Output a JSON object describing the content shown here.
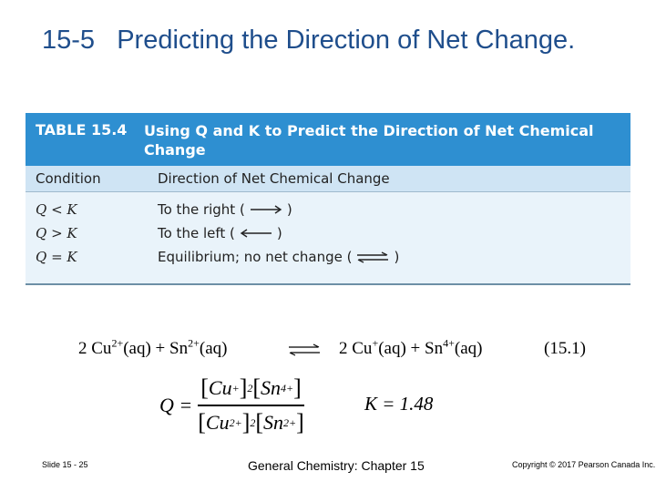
{
  "title": "15-5   Predicting the Direction of Net Change.",
  "table": {
    "label": "TABLE 15.4",
    "title": "Using Q and K to Predict the Direction of Net Chemical Change",
    "headers": [
      "Condition",
      "Direction of Net Chemical Change"
    ],
    "rows": [
      {
        "condition": "Q < K",
        "direction": "To the right (",
        "arrow": "right-arrow",
        "close": ")"
      },
      {
        "condition": "Q > K",
        "direction": "To the left (",
        "arrow": "left-arrow",
        "close": ")"
      },
      {
        "condition": "Q = K",
        "direction": "Equilibrium; no net change (",
        "arrow": "equilibrium-arrow",
        "close": ")"
      }
    ]
  },
  "equation": {
    "left_1": "2 Cu",
    "left_1_sup": "2+",
    "left_1_state": "(aq) + Sn",
    "left_2_sup": "2+",
    "left_2_state": "(aq)",
    "right_1": "2 Cu",
    "right_1_sup": "+",
    "right_1_state": "(aq) + Sn",
    "right_2_sup": "4+",
    "right_2_state": "(aq)",
    "number": "(15.1)"
  },
  "q_expression": {
    "lhs": "Q =",
    "num_1": "Cu",
    "num_1_sup": "+",
    "num_exp_1": "2",
    "num_2": "Sn",
    "num_2_sup": "4+",
    "den_1": "Cu",
    "den_1_sup": "2+",
    "den_exp_1": "2",
    "den_2": "Sn",
    "den_2_sup": "2+"
  },
  "k_value": "K = 1.48",
  "footer": {
    "slide": "Slide 15 - 25",
    "course": "General Chemistry: Chapter 15",
    "copyright": "Copyright © 2017 Pearson Canada Inc."
  }
}
